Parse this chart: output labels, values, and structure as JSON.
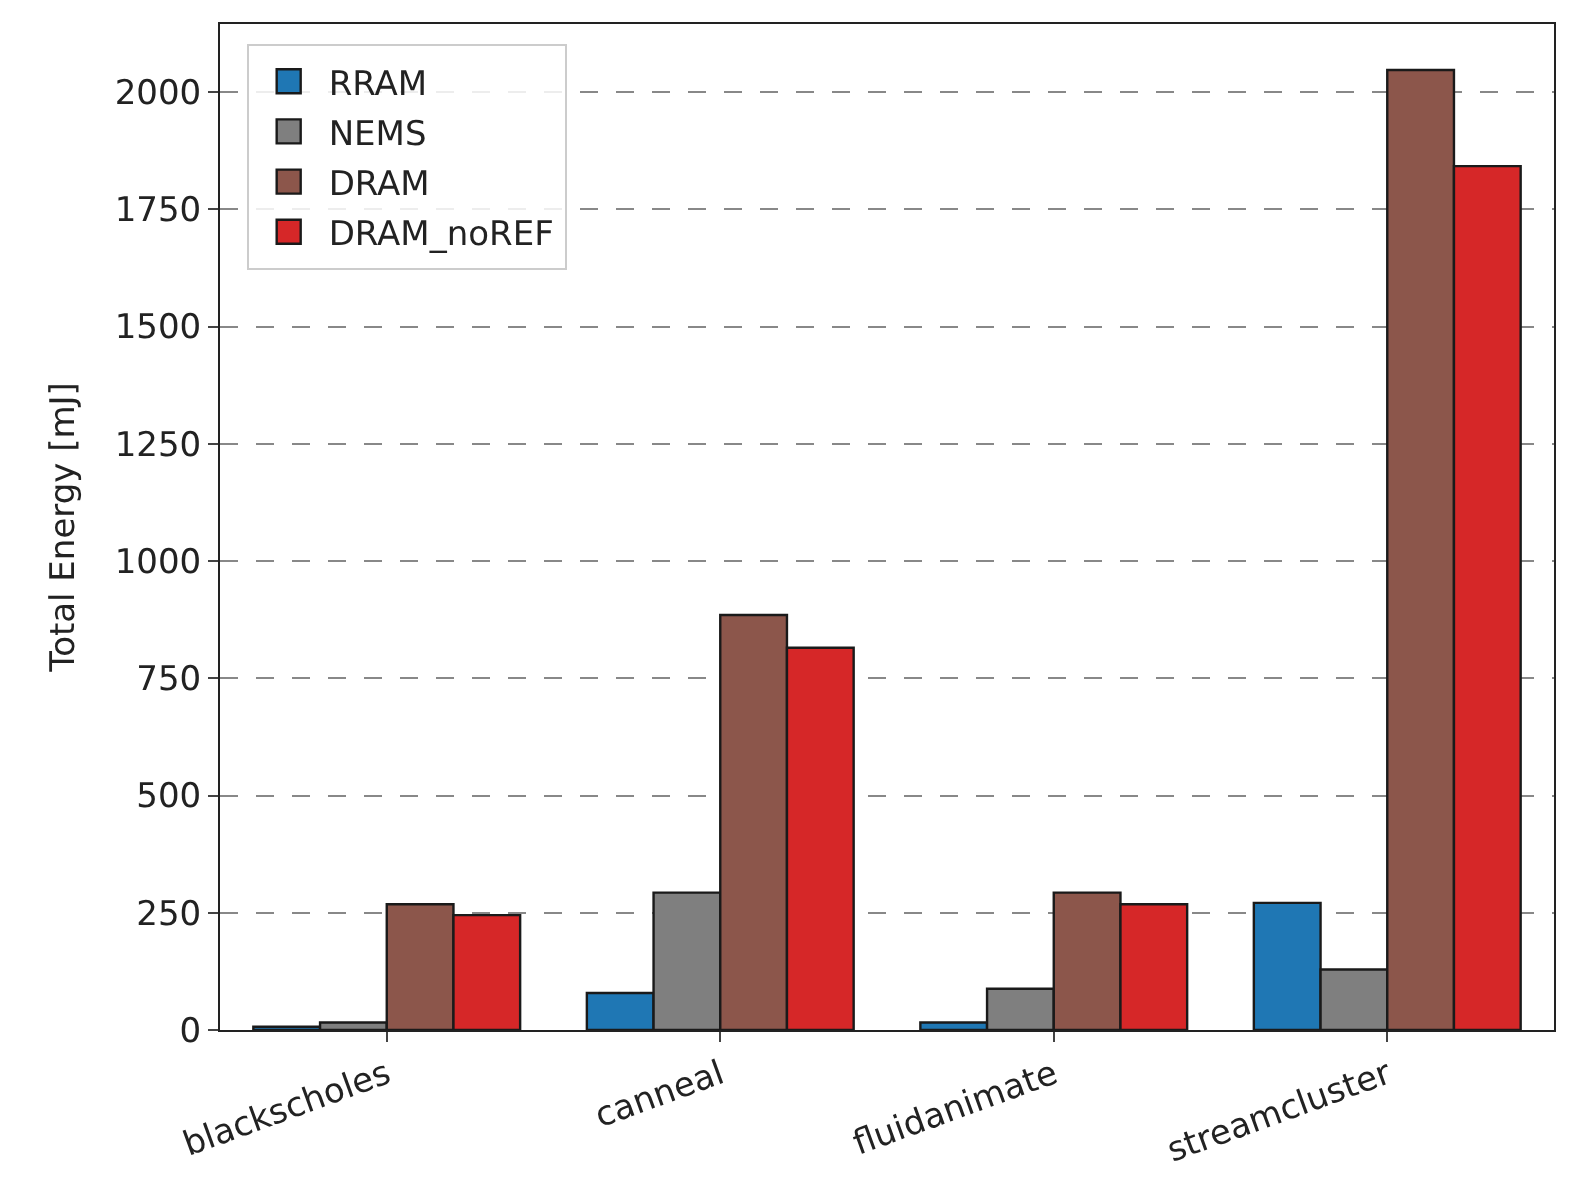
{
  "chart_data": {
    "type": "bar",
    "ylabel": "Total Energy [mJ]",
    "categories": [
      "blackscholes",
      "canneal",
      "fluidanimate",
      "streamcluster"
    ],
    "series": [
      {
        "name": "RRAM",
        "color": "#1f77b4",
        "values": [
          7,
          79,
          16,
          271
        ]
      },
      {
        "name": "NEMS",
        "color": "#7f7f7f",
        "values": [
          16,
          293,
          88,
          129
        ]
      },
      {
        "name": "DRAM",
        "color": "#8c564b",
        "values": [
          268,
          885,
          293,
          2047
        ]
      },
      {
        "name": "DRAM_noREF",
        "color": "#d62728",
        "values": [
          245,
          815,
          268,
          1842
        ]
      }
    ],
    "ylim": [
      0,
      2145
    ],
    "yticks": [
      0,
      250,
      500,
      750,
      1000,
      1250,
      1500,
      1750,
      2000
    ],
    "grid": "y",
    "legend": "top left"
  }
}
